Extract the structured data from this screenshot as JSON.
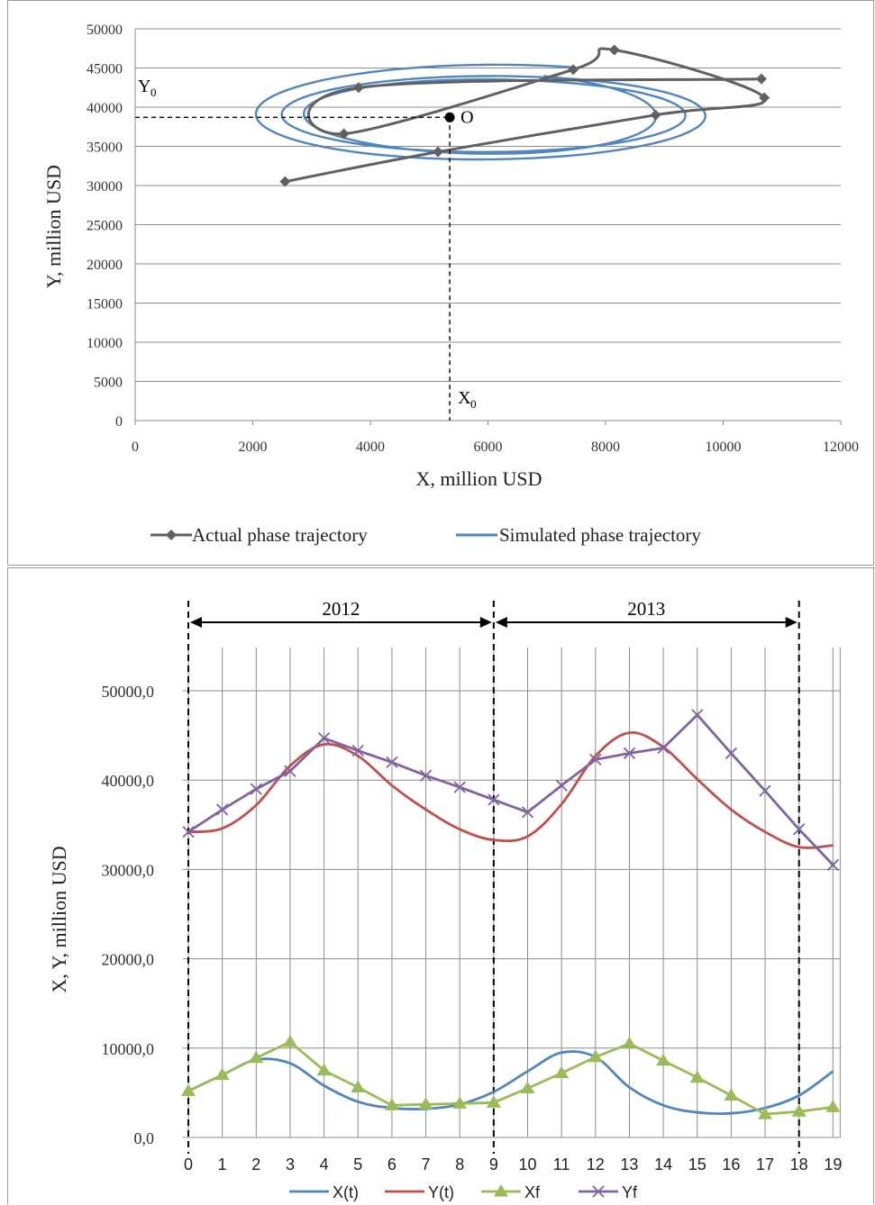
{
  "chart_data": [
    {
      "type": "line",
      "subtype": "phase-trajectory",
      "title": "",
      "xlabel": "X, million USD",
      "ylabel": "Y, million USD",
      "xlim": [
        0,
        12000
      ],
      "ylim": [
        0,
        50000
      ],
      "x_ticks": [
        0,
        2000,
        4000,
        6000,
        8000,
        10000,
        12000
      ],
      "y_ticks": [
        0,
        5000,
        10000,
        15000,
        20000,
        25000,
        30000,
        35000,
        40000,
        45000,
        50000
      ],
      "grid": "horizontal",
      "legend": "bottom",
      "series": [
        {
          "name": "Actual phase trajectory",
          "color": "#606060",
          "marker": "diamond",
          "points": [
            [
              2550,
              30500
            ],
            [
              5150,
              34300
            ],
            [
              8850,
              39000
            ],
            [
              10700,
              41200
            ],
            [
              8150,
              47300
            ],
            [
              7450,
              44800
            ],
            [
              3550,
              36600
            ],
            [
              3800,
              42500
            ],
            [
              10650,
              43600
            ]
          ]
        },
        {
          "name": "Simulated phase trajectory",
          "color": "#4f86c0",
          "marker": "none",
          "spiral": {
            "center": [
              6000,
              39000
            ],
            "x_radii": [
              4100,
              3600,
              3300,
              2750
            ],
            "y_radii": [
              6500,
              5000,
              4500,
              5300
            ]
          }
        }
      ],
      "annotations": {
        "point_label": "O",
        "point": [
          5350,
          38700
        ],
        "x_label": "X",
        "x_sub": "0",
        "y_label": "Y",
        "y_sub": "0"
      }
    },
    {
      "type": "line",
      "title": "",
      "xlabel": "",
      "ylabel": "X, Y, million USD",
      "ylim": [
        0,
        50000
      ],
      "y_ticks": [
        "0,0",
        "10000,0",
        "20000,0",
        "30000,0",
        "40000,0",
        "50000,0"
      ],
      "x": [
        0,
        1,
        2,
        3,
        4,
        5,
        6,
        7,
        8,
        9,
        10,
        11,
        12,
        13,
        14,
        15,
        16,
        17,
        18,
        19
      ],
      "legend": "bottom",
      "periods": [
        {
          "label": "2012",
          "from": 0,
          "to": 9
        },
        {
          "label": "2013",
          "from": 9,
          "to": 18
        }
      ],
      "series": [
        {
          "name": "X(t)",
          "color": "#4f86c0",
          "marker": "none",
          "values": [
            5200,
            7000,
            8700,
            8300,
            5800,
            4000,
            3300,
            3200,
            3700,
            5100,
            7400,
            9500,
            9000,
            5600,
            3600,
            2800,
            2700,
            3300,
            4700,
            7400
          ]
        },
        {
          "name": "Y(t)",
          "color": "#c0504d",
          "marker": "none",
          "values": [
            34200,
            34600,
            37200,
            41600,
            44000,
            42700,
            39400,
            36700,
            34500,
            33300,
            33700,
            37300,
            42700,
            45300,
            43700,
            40100,
            36700,
            34200,
            32500,
            32700
          ]
        },
        {
          "name": "Xf",
          "color": "#9bbb59",
          "marker": "triangle",
          "values": [
            5200,
            7000,
            8900,
            10700,
            7500,
            5600,
            3600,
            3700,
            3800,
            3900,
            5500,
            7200,
            9000,
            10500,
            8600,
            6700,
            4700,
            2600,
            2900,
            3400
          ]
        },
        {
          "name": "Yf",
          "color": "#8064a2",
          "marker": "cross",
          "values": [
            34200,
            36700,
            39000,
            41000,
            44700,
            43300,
            42000,
            40500,
            39200,
            37800,
            36400,
            39400,
            42300,
            43000,
            43600,
            47300,
            43000,
            38800,
            34500,
            30500
          ]
        }
      ]
    }
  ]
}
